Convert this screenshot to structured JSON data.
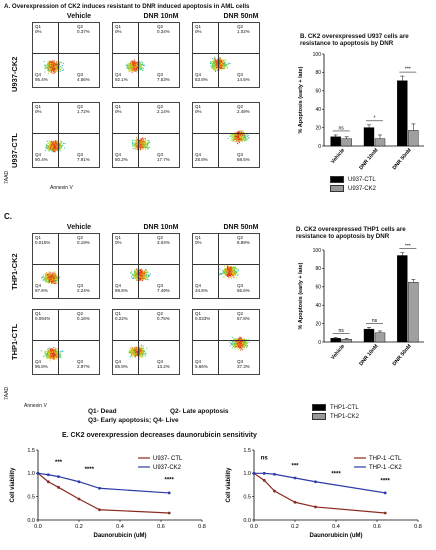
{
  "panelA": {
    "title": "A. Overexpression of CK2 induces resistant to DNR induced apoptosis in AML cells",
    "cols": [
      "Vehicle",
      "DNR 10nM",
      "DNR 50nM"
    ],
    "rows": [
      "U937-CK2",
      "U937-CTL"
    ],
    "plots": [
      [
        {
          "q1": "Q1\n0%",
          "q2": "Q2\n0.37%",
          "q3": "Q3\n4.56%",
          "q4": "Q4\n95.4%"
        },
        {
          "q1": "Q1\n0%",
          "q2": "Q2\n0.34%",
          "q3": "Q3\n7.53%",
          "q4": "Q4\n92.1%"
        },
        {
          "q1": "Q1\n0%",
          "q2": "Q2\n1.02%",
          "q3": "Q3\n14.5%",
          "q4": "Q4\n83.8%"
        }
      ],
      [
        {
          "q1": "Q1\n0%",
          "q2": "Q2\n1.72%",
          "q3": "Q3\n7.91%",
          "q4": "Q4\n90.4%"
        },
        {
          "q1": "Q1\n0%",
          "q2": "Q2\n2.14%",
          "q3": "Q3\n17.7%",
          "q4": "Q4\n80.2%"
        },
        {
          "q1": "Q1\n0%",
          "q2": "Q2\n2.49%",
          "q3": "Q3\n68.5%",
          "q4": "Q4\n28.8%"
        }
      ]
    ],
    "ylab": "7AAD",
    "xlab": "Annexin V"
  },
  "panelB": {
    "title": "B. CK2 overexpressed U937 cells are resistance to apoptosis by DNR",
    "ylabel": "% Apoptosis (early + late)",
    "yticks": [
      "0",
      "20",
      "40",
      "60",
      "80",
      "100"
    ],
    "categories": [
      "Vehicle",
      "DNR 10nM",
      "DNR 50nM"
    ],
    "sig": [
      "ns",
      "*",
      "***"
    ],
    "legend": [
      "U937-CTL",
      "U937-CK2"
    ]
  },
  "panelC": {
    "title": "C.",
    "cols": [
      "Vehicle",
      "DNR 10nM",
      "DNR 50nM"
    ],
    "rows": [
      "THP1-CK2",
      "THP1-CTL"
    ],
    "plots": [
      [
        {
          "q1": "Q1\n0.015%",
          "q2": "Q2\n0.19%",
          "q3": "Q3\n2.24%",
          "q4": "Q4\n97.6%"
        },
        {
          "q1": "Q1\n0%",
          "q2": "Q2\n3.04%",
          "q3": "Q3\n7.49%",
          "q4": "Q4\n89.5%"
        },
        {
          "q1": "Q1\n0%",
          "q2": "Q2\n8.89%",
          "q3": "Q3\n56.6%",
          "q4": "Q4\n34.5%"
        }
      ],
      [
        {
          "q1": "Q1\n0.094%",
          "q2": "Q2\n0.16%",
          "q3": "Q3\n2.97%",
          "q4": "Q4\n96.8%"
        },
        {
          "q1": "Q1\n0.22%",
          "q2": "Q2\n0.75%",
          "q3": "Q3\n13.2%",
          "q4": "Q4\n85.9%"
        },
        {
          "q1": "Q1\n0.033%",
          "q2": "Q2\n57.8%",
          "q3": "Q3\n37.3%",
          "q4": "Q4\n5.66%"
        }
      ]
    ],
    "ylab": "7AAD",
    "xlab": "Annexin V",
    "key1": "Q1- Dead",
    "key2": "Q2- Late apoptosis",
    "key3": "Q3- Early apoptosis; Q4- Live"
  },
  "panelD": {
    "title": "D. CK2 overexpressed THP1 cells are resistance to apoptosis by DNR",
    "ylabel": "% Apoptosis (early + late)",
    "yticks": [
      "0",
      "20",
      "40",
      "60",
      "80",
      "100"
    ],
    "categories": [
      "Vehicle",
      "DNR 10nM",
      "DNR 50nM"
    ],
    "sig": [
      "ns",
      "ns",
      "***"
    ],
    "legend": [
      "THP1-CTL",
      "THP1-CK2"
    ]
  },
  "panelE": {
    "title": "E. CK2 overexpression decreases daunorubicin sensitivity",
    "xlabel": "Daunorubicin (uM)",
    "ylabel": "Cell viability",
    "xticks": [
      "0.0",
      "0.2",
      "0.4",
      "0.6",
      "0.8"
    ],
    "yticks": [
      "0.0",
      "0.5",
      "1.0",
      "1.5"
    ],
    "left": {
      "legend": [
        "U937- CTL",
        "U937-CK2"
      ],
      "sig": [
        "***",
        "****",
        "****"
      ]
    },
    "right": {
      "legend": [
        "THP-1 -CTL",
        "THP-1 -CK2"
      ],
      "sig": [
        "ns",
        "***",
        "****",
        "****"
      ]
    }
  },
  "chart_data": [
    {
      "type": "bar",
      "categories": [
        "Vehicle",
        "DNR 10nM",
        "DNR 50nM"
      ],
      "series": [
        {
          "name": "U937-CTL",
          "values": [
            10,
            20,
            71
          ],
          "err": [
            2,
            3,
            5
          ]
        },
        {
          "name": "U937-CK2",
          "values": [
            8,
            8,
            17
          ],
          "err": [
            2,
            4,
            7
          ]
        }
      ],
      "ylabel": "% Apoptosis (early + late)",
      "ylim": [
        0,
        100
      ]
    },
    {
      "type": "bar",
      "categories": [
        "Vehicle",
        "DNR 10nM",
        "DNR 50nM"
      ],
      "series": [
        {
          "name": "THP1-CTL",
          "values": [
            4,
            14,
            94
          ],
          "err": [
            1,
            2,
            3
          ]
        },
        {
          "name": "THP1-CK2",
          "values": [
            3,
            10,
            65
          ],
          "err": [
            1,
            2,
            3
          ]
        }
      ],
      "ylabel": "% Apoptosis (early + late)",
      "ylim": [
        0,
        100
      ]
    },
    {
      "type": "line",
      "x": [
        0,
        0.05,
        0.1,
        0.2,
        0.3,
        0.64
      ],
      "series": [
        {
          "name": "U937- CTL",
          "values": [
            1.0,
            0.82,
            0.7,
            0.45,
            0.22,
            0.15
          ]
        },
        {
          "name": "U937-CK2",
          "values": [
            1.0,
            0.97,
            0.93,
            0.82,
            0.68,
            0.58
          ]
        }
      ],
      "xlabel": "Daunorubicin (uM)",
      "ylabel": "Cell viability",
      "ylim": [
        0,
        1.5
      ]
    },
    {
      "type": "line",
      "x": [
        0,
        0.05,
        0.1,
        0.2,
        0.3,
        0.64
      ],
      "series": [
        {
          "name": "THP-1 -CTL",
          "values": [
            1.0,
            0.85,
            0.62,
            0.38,
            0.28,
            0.15
          ]
        },
        {
          "name": "THP-1 -CK2",
          "values": [
            1.0,
            1.0,
            0.98,
            0.9,
            0.82,
            0.58
          ]
        }
      ],
      "xlabel": "Daunorubicin (uM)",
      "ylabel": "Cell viability",
      "ylim": [
        0,
        1.5
      ]
    }
  ]
}
